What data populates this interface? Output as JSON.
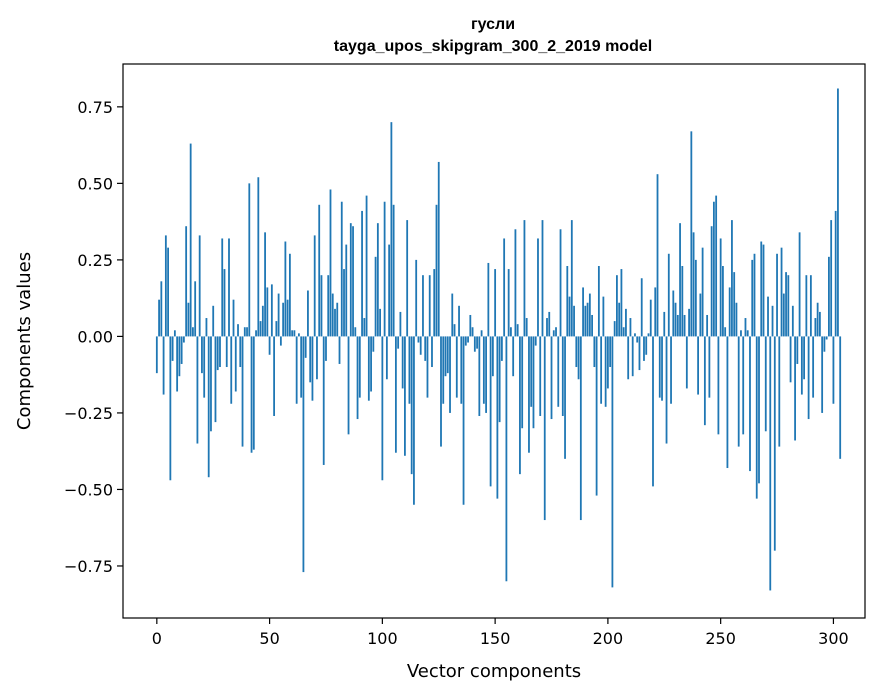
{
  "chart_data": {
    "type": "bar",
    "title": "гусли",
    "subtitle": "tayga_upos_skipgram_300_2_2019 model",
    "xlabel": "Vector components",
    "ylabel": "Components values",
    "xlim": [
      -15,
      314
    ],
    "ylim": [
      -0.92,
      0.89
    ],
    "xticks": [
      0,
      50,
      100,
      150,
      200,
      250,
      300
    ],
    "xtick_labels": [
      "0",
      "50",
      "100",
      "150",
      "200",
      "250",
      "300"
    ],
    "yticks": [
      0.75,
      0.5,
      0.25,
      0.0,
      -0.25,
      -0.5,
      -0.75
    ],
    "ytick_labels": [
      "0.75",
      "0.50",
      "0.25",
      "0.00",
      "−0.25",
      "−0.50",
      "−0.75"
    ],
    "bar_color": "#1f77b4",
    "grid": false,
    "values": [
      -0.12,
      0.12,
      0.18,
      -0.19,
      0.33,
      0.29,
      -0.47,
      -0.08,
      0.02,
      -0.18,
      -0.13,
      -0.09,
      -0.02,
      0.36,
      0.11,
      0.63,
      0.03,
      0.18,
      -0.35,
      0.33,
      -0.12,
      -0.2,
      0.06,
      -0.46,
      -0.31,
      0.1,
      -0.28,
      -0.11,
      -0.1,
      0.32,
      0.22,
      -0.1,
      0.32,
      -0.22,
      0.12,
      -0.18,
      0.04,
      -0.1,
      -0.36,
      0.03,
      0.03,
      0.5,
      -0.38,
      -0.37,
      0.02,
      0.52,
      0.05,
      0.1,
      0.34,
      0.16,
      -0.06,
      0.17,
      -0.26,
      0.05,
      0.14,
      -0.03,
      0.11,
      0.31,
      0.12,
      0.27,
      0.02,
      0.02,
      -0.22,
      0.01,
      -0.2,
      -0.77,
      -0.07,
      0.15,
      -0.15,
      -0.21,
      0.33,
      -0.14,
      0.43,
      0.2,
      -0.42,
      -0.08,
      0.2,
      0.48,
      0.14,
      0.09,
      0.11,
      -0.09,
      0.44,
      0.22,
      0.3,
      -0.32,
      0.37,
      0.36,
      0.03,
      -0.27,
      -0.2,
      0.41,
      0.06,
      0.46,
      -0.21,
      -0.18,
      -0.05,
      0.26,
      0.37,
      0.09,
      -0.47,
      0.44,
      -0.14,
      0.3,
      0.7,
      0.43,
      -0.38,
      -0.04,
      0.08,
      -0.17,
      -0.39,
      0.38,
      -0.22,
      -0.45,
      -0.55,
      0.25,
      -0.02,
      -0.06,
      0.2,
      -0.08,
      -0.2,
      0.2,
      -0.1,
      0.22,
      0.43,
      0.57,
      -0.36,
      -0.22,
      -0.13,
      -0.12,
      -0.25,
      0.14,
      0.04,
      -0.2,
      0.1,
      -0.22,
      -0.55,
      -0.03,
      -0.02,
      0.07,
      0.03,
      -0.05,
      -0.04,
      -0.26,
      0.02,
      -0.22,
      -0.25,
      0.24,
      -0.49,
      -0.13,
      0.22,
      -0.53,
      -0.28,
      -0.08,
      0.32,
      -0.8,
      0.22,
      0.03,
      -0.13,
      0.35,
      0.04,
      -0.45,
      -0.3,
      0.38,
      0.06,
      -0.38,
      -0.23,
      -0.3,
      -0.03,
      0.32,
      -0.26,
      0.38,
      -0.6,
      0.06,
      0.08,
      -0.27,
      0.02,
      0.03,
      -0.23,
      0.35,
      -0.26,
      -0.4,
      0.23,
      0.13,
      0.38,
      0.1,
      -0.1,
      -0.14,
      -0.6,
      0.16,
      0.1,
      0.11,
      0.14,
      0.07,
      -0.1,
      -0.52,
      0.23,
      -0.22,
      0.13,
      -0.23,
      -0.17,
      -0.1,
      -0.82,
      0.05,
      0.2,
      0.11,
      0.22,
      0.03,
      0.09,
      -0.14,
      0.06,
      -0.13,
      0.01,
      -0.02,
      -0.11,
      0.19,
      -0.08,
      -0.06,
      0.01,
      0.12,
      -0.49,
      0.16,
      0.53,
      -0.2,
      -0.21,
      0.08,
      -0.35,
      0.27,
      -0.22,
      0.15,
      0.11,
      0.07,
      0.37,
      0.23,
      0.07,
      -0.17,
      0.09,
      0.67,
      0.34,
      0.25,
      -0.19,
      0.14,
      0.29,
      -0.29,
      0.07,
      -0.2,
      0.36,
      0.44,
      0.46,
      -0.32,
      0.32,
      0.23,
      0.03,
      -0.43,
      0.16,
      0.38,
      0.21,
      0.11,
      -0.36,
      0.02,
      -0.32,
      0.06,
      0.02,
      -0.44,
      0.25,
      0.27,
      -0.53,
      -0.48,
      0.31,
      0.3,
      -0.31,
      0.13,
      -0.83,
      0.1,
      -0.7,
      0.27,
      -0.36,
      0.29,
      0.14,
      0.21,
      0.2,
      -0.15,
      0.1,
      -0.34,
      -0.09,
      0.34,
      -0.19,
      -0.14,
      0.2,
      -0.27,
      0.2,
      -0.2,
      0.06,
      0.11,
      0.08,
      -0.25,
      -0.05,
      -0.01,
      0.26,
      0.38,
      -0.22,
      0.41,
      0.81,
      -0.4
    ]
  }
}
